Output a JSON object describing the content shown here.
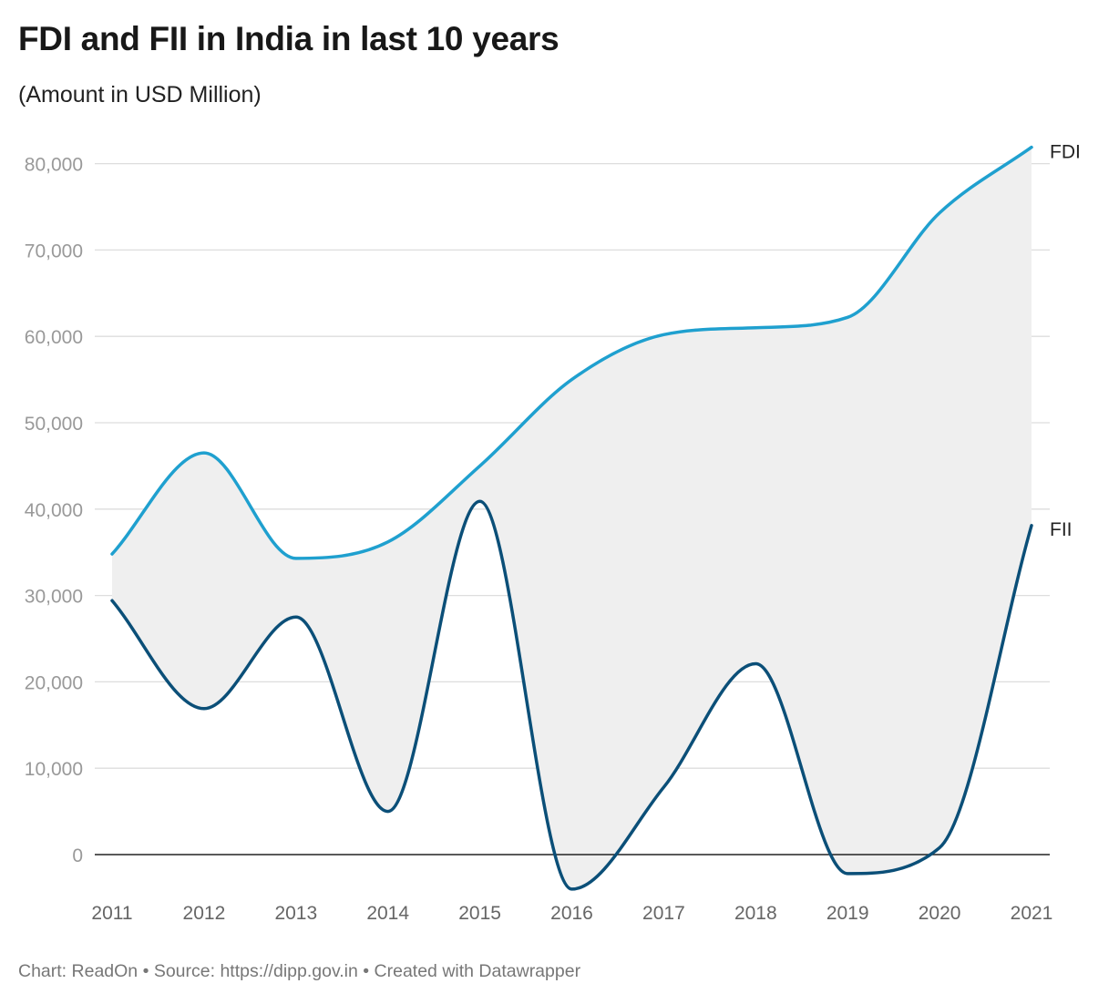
{
  "title": "FDI and FII in India in last 10 years",
  "subtitle": "(Amount in USD Million)",
  "footer": {
    "chart_credit": "Chart: ReadOn",
    "source": "Source: https://dipp.gov.in",
    "created_with": "Created with Datawrapper",
    "separator": "•"
  },
  "colors": {
    "fdi": "#1fa0cf",
    "fii": "#0b4f78",
    "fill": "#efefef",
    "grid": "#dddddd",
    "zero_line": "#222222",
    "tick_text": "#999999",
    "year_text": "#666666"
  },
  "chart_data": {
    "type": "line",
    "x": [
      2011,
      2012,
      2013,
      2014,
      2015,
      2016,
      2017,
      2018,
      2019,
      2020,
      2021
    ],
    "series": [
      {
        "name": "FDI",
        "values": [
          34800,
          46500,
          34300,
          36200,
          45000,
          55000,
          60200,
          61000,
          62200,
          74300,
          81900
        ]
      },
      {
        "name": "FII",
        "values": [
          29400,
          16900,
          27500,
          5000,
          40900,
          -4000,
          7800,
          22100,
          -2200,
          800,
          38100
        ]
      }
    ],
    "fill_between_series": true,
    "ylim": [
      -4000,
      82000
    ],
    "yticks": [
      0,
      10000,
      20000,
      30000,
      40000,
      50000,
      60000,
      70000,
      80000
    ],
    "ytick_labels": [
      "0",
      "10,000",
      "20,000",
      "30,000",
      "40,000",
      "50,000",
      "60,000",
      "70,000",
      "80,000"
    ],
    "xlabel": "",
    "ylabel": "",
    "grid": true,
    "legend": "direct labels at line ends"
  }
}
